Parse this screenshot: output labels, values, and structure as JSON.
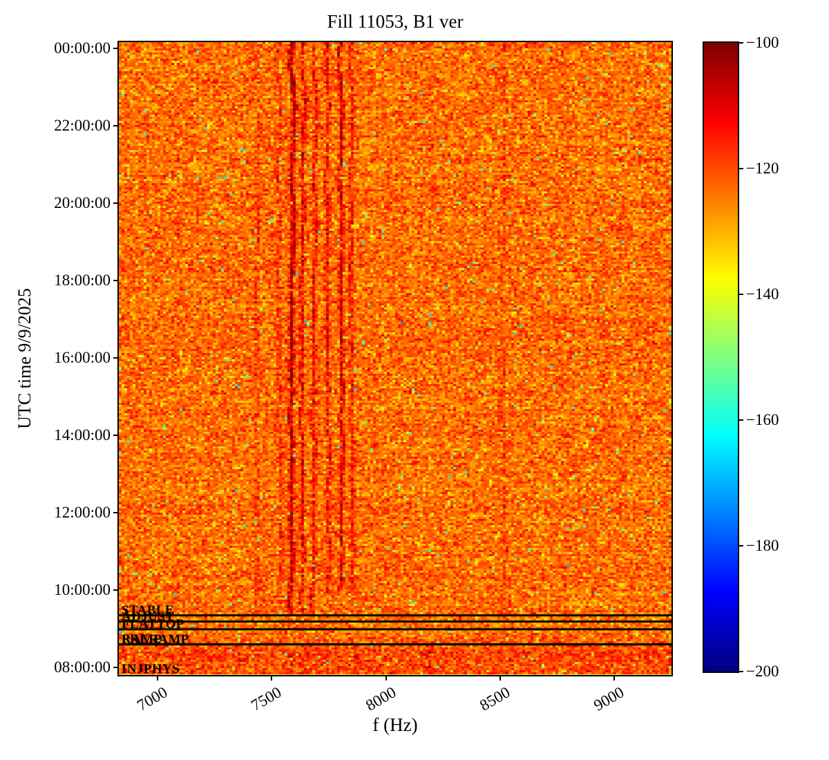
{
  "figure": {
    "title": "Fill 11053, B1 ver"
  },
  "chart_data": {
    "type": "heatmap",
    "title": "Fill 11053, B1 ver",
    "xlabel": "f (Hz)",
    "ylabel": "UTC time 9/9/2025",
    "x_axis": {
      "ticks": [
        7000,
        7500,
        8000,
        8500,
        9000
      ],
      "tick_labels": [
        "7000",
        "7500",
        "8000",
        "8500",
        "9000"
      ],
      "range_hz": [
        6830,
        9250
      ]
    },
    "y_axis": {
      "date": "9/9/2025",
      "tick_labels": [
        "00:00:00",
        "22:00:00",
        "20:00:00",
        "18:00:00",
        "16:00:00",
        "14:00:00",
        "12:00:00",
        "10:00:00",
        "08:00:00"
      ],
      "tick_hours": [
        24,
        22,
        20,
        18,
        16,
        14,
        12,
        10,
        8
      ],
      "range_hours_bottom_top": [
        7.797,
        24.163
      ]
    },
    "colorbar": {
      "colormap": "jet",
      "range": [
        -200,
        -100
      ],
      "ticks": [
        -100,
        -120,
        -140,
        -160,
        -180,
        -200
      ],
      "tick_labels": [
        "−100",
        "−120",
        "−140",
        "−160",
        "−180",
        "−200"
      ]
    },
    "background_level_db": -123,
    "noise_sigma_db": 5.0,
    "spectral_lines_hz": [
      {
        "f": 7438,
        "strength": 0.28
      },
      {
        "f": 7535,
        "strength": 0.32
      },
      {
        "f": 7590,
        "strength": 1.0
      },
      {
        "f": 7636,
        "strength": 0.72
      },
      {
        "f": 7688,
        "strength": 0.58
      },
      {
        "f": 7747,
        "strength": 0.58
      },
      {
        "f": 7806,
        "strength": 0.85
      },
      {
        "f": 7851,
        "strength": 0.5
      },
      {
        "f": 8518,
        "strength": 0.22
      }
    ],
    "injection_region_lines_hz": [
      {
        "f": 7590,
        "strength": 0.2
      },
      {
        "f": 7640,
        "strength": 0.2
      },
      {
        "f": 7868,
        "strength": 0.35
      },
      {
        "f": 8187,
        "strength": 0.5
      }
    ],
    "beam_modes": [
      {
        "label": "STABLE",
        "start_hour": 9.34
      },
      {
        "label": "ADJUST",
        "start_hour": 9.18
      },
      {
        "label": "FLATTOP",
        "start_hour": 8.98
      },
      {
        "label": "PRERAMP",
        "start_hour": 8.59
      },
      {
        "label": "RAMP",
        "start_hour": 8.59
      },
      {
        "label": "INJPHYS",
        "start_hour": 7.82
      }
    ]
  }
}
